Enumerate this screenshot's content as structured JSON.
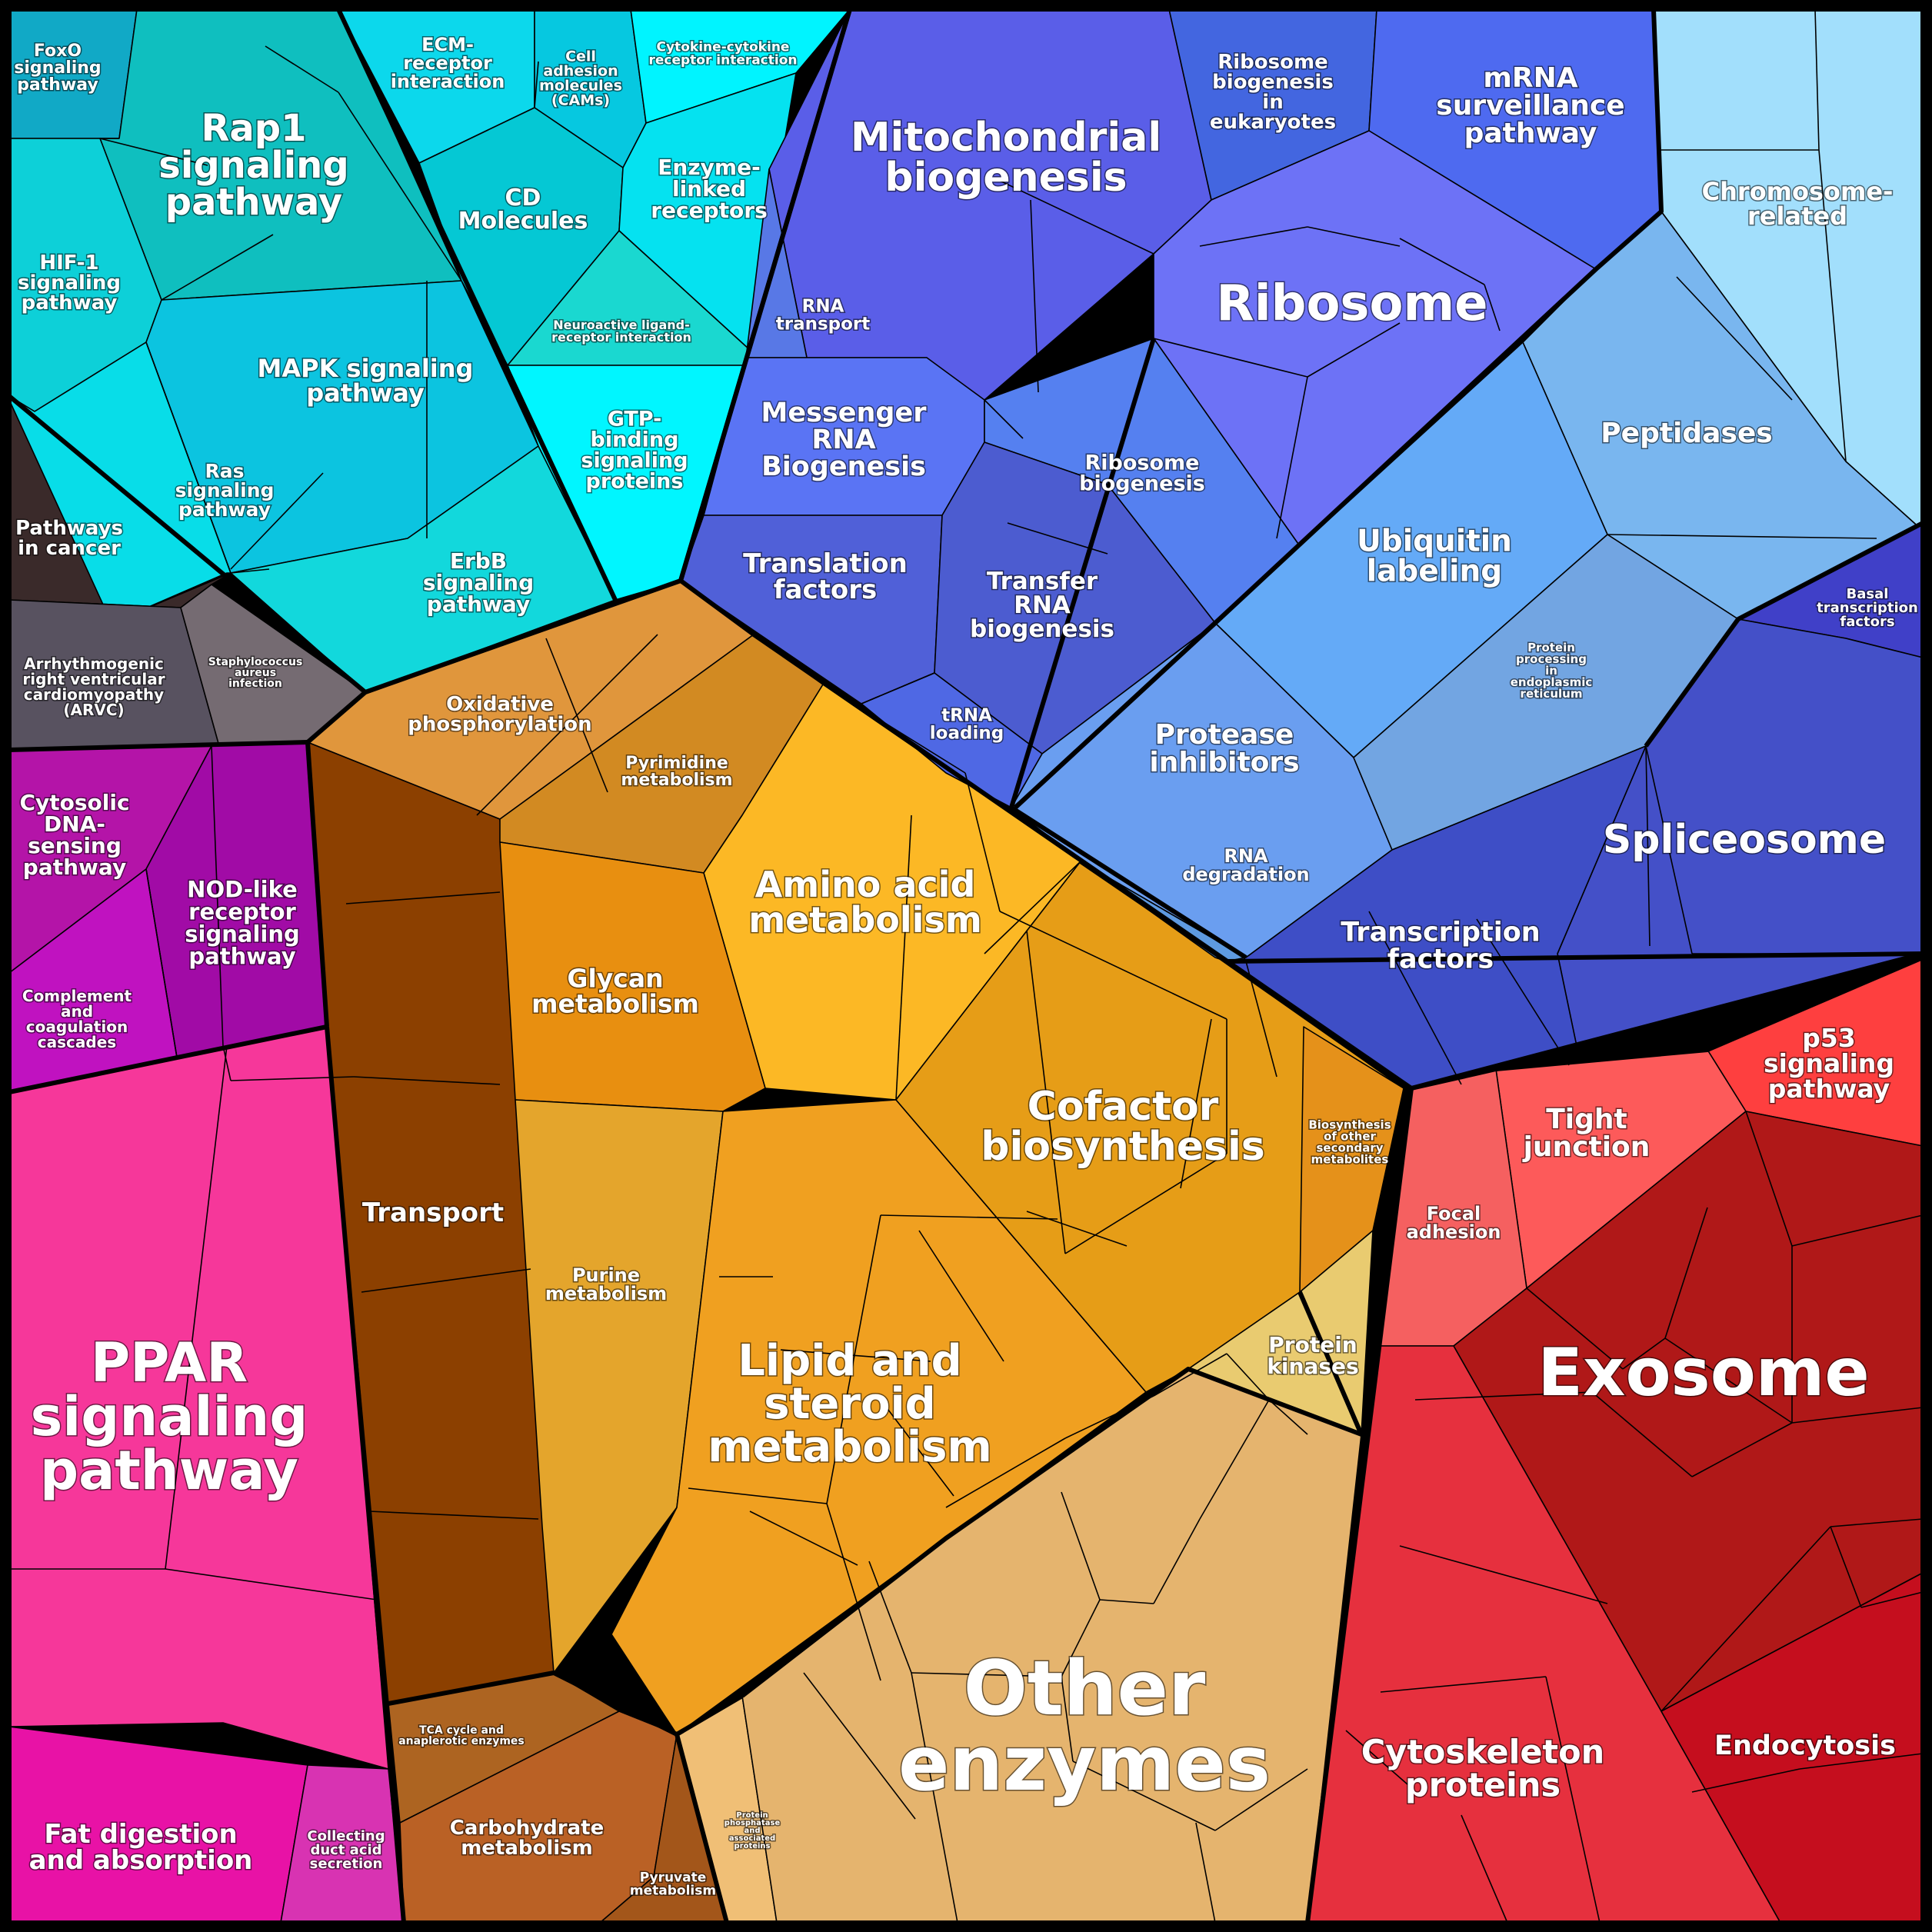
{
  "colors": {
    "teal_group": "#16c9d6",
    "dark_group": "#3a2a2a",
    "purple_group": "#a10ba6",
    "pink_group": "#f33a9d",
    "brown_group": "#8c4000",
    "orange_group": "#f0a020",
    "tan_group": "#e5b46e",
    "blue_group": "#5b6bf0",
    "lightblue_group": "#6aaaf0",
    "indigo_group": "#4450c8",
    "red_group": "#e02838"
  },
  "labels": {
    "foxo": [
      "FoxO",
      "signaling",
      "pathway"
    ],
    "rap1": [
      "Rap1",
      "signaling",
      "pathway"
    ],
    "ecm": [
      "ECM-",
      "receptor",
      "interaction"
    ],
    "cams": [
      "Cell",
      "adhesion",
      "molecules",
      "(CAMs)"
    ],
    "cytokine": [
      "Cytokine-cytokine",
      "receptor interaction"
    ],
    "cd": [
      "CD",
      "Molecules"
    ],
    "enzyme_linked": [
      "Enzyme-",
      "linked",
      "receptors"
    ],
    "hif1": [
      "HIF-1",
      "signaling",
      "pathway"
    ],
    "neuroactive": [
      "Neuroactive ligand-",
      "receptor interaction"
    ],
    "mapk": [
      "MAPK signaling",
      "pathway"
    ],
    "gtp": [
      "GTP-",
      "binding",
      "signaling",
      "proteins"
    ],
    "ras": [
      "Ras",
      "signaling",
      "pathway"
    ],
    "erbb": [
      "ErbB",
      "signaling",
      "pathway"
    ],
    "cancer": [
      "Pathways",
      "in cancer"
    ],
    "arvc": [
      "Arrhythmogenic",
      "right ventricular",
      "cardiomyopathy",
      "(ARVC)"
    ],
    "staph": [
      "Staphylococcus",
      "aureus",
      "infection"
    ],
    "cytosolic": [
      "Cytosolic",
      "DNA-",
      "sensing",
      "pathway"
    ],
    "nod": [
      "NOD-like",
      "receptor",
      "signaling",
      "pathway"
    ],
    "complement": [
      "Complement",
      "and",
      "coagulation",
      "cascades"
    ],
    "ppar": [
      "PPAR",
      "signaling",
      "pathway"
    ],
    "fat": [
      "Fat digestion",
      "and absorption"
    ],
    "collecting": [
      "Collecting",
      "duct acid",
      "secretion"
    ],
    "transport": [
      "Transport"
    ],
    "oxphos": [
      "Oxidative",
      "phosphorylation"
    ],
    "pyrimidine": [
      "Pyrimidine",
      "metabolism"
    ],
    "amino": [
      "Amino acid",
      "metabolism"
    ],
    "glycan": [
      "Glycan",
      "metabolism"
    ],
    "cofactor": [
      "Cofactor",
      "biosynthesis"
    ],
    "secondary": [
      "Biosynthesis",
      "of other",
      "secondary",
      "metabolites"
    ],
    "purine": [
      "Purine",
      "metabolism"
    ],
    "lipid": [
      "Lipid and",
      "steroid",
      "metabolism"
    ],
    "kinases": [
      "Protein",
      "kinases"
    ],
    "tca": [
      "TCA cycle and",
      "anaplerotic enzymes"
    ],
    "carb": [
      "Carbohydrate",
      "metabolism"
    ],
    "pyruvate": [
      "Pyruvate",
      "metabolism"
    ],
    "phosphatase": [
      "Protein",
      "phosphatase",
      "and",
      "associated",
      "proteins"
    ],
    "other": [
      "Other",
      "enzymes"
    ],
    "mito": [
      "Mitochondrial",
      "biogenesis"
    ],
    "ribo_euk": [
      "Ribosome",
      "biogenesis",
      "in",
      "eukaryotes"
    ],
    "mrna_surv": [
      "mRNA",
      "surveillance",
      "pathway"
    ],
    "chromosome": [
      "Chromosome-",
      "related"
    ],
    "ribosome": [
      "Ribosome"
    ],
    "rna_transport": [
      "RNA",
      "transport"
    ],
    "messenger": [
      "Messenger",
      "RNA",
      "Biogenesis"
    ],
    "ribo_bio": [
      "Ribosome",
      "biogenesis"
    ],
    "peptidases": [
      "Peptidases"
    ],
    "ubiquitin": [
      "Ubiquitin",
      "labeling"
    ],
    "translation": [
      "Translation",
      "factors"
    ],
    "trna_bio": [
      "Transfer",
      "RNA",
      "biogenesis"
    ],
    "basal": [
      "Basal",
      "transcription",
      "factors"
    ],
    "er": [
      "Protein",
      "processing",
      "in",
      "endoplasmic",
      "reticulum"
    ],
    "trna_load": [
      "tRNA",
      "loading"
    ],
    "protease": [
      "Protease",
      "inhibitors"
    ],
    "spliceosome": [
      "Spliceosome"
    ],
    "rna_deg": [
      "RNA",
      "degradation"
    ],
    "tf": [
      "Transcription",
      "factors"
    ],
    "p53": [
      "p53",
      "signaling",
      "pathway"
    ],
    "tight": [
      "Tight",
      "junction"
    ],
    "focal": [
      "Focal",
      "adhesion"
    ],
    "exosome": [
      "Exosome"
    ],
    "cytoskeleton": [
      "Cytoskeleton",
      "proteins"
    ],
    "endocytosis": [
      "Endocytosis"
    ]
  }
}
